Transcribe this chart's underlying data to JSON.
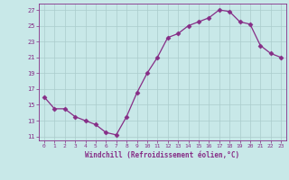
{
  "x": [
    0,
    1,
    2,
    3,
    4,
    5,
    6,
    7,
    8,
    9,
    10,
    11,
    12,
    13,
    14,
    15,
    16,
    17,
    18,
    19,
    20,
    21,
    22,
    23
  ],
  "y": [
    16,
    14.5,
    14.5,
    13.5,
    13,
    12.5,
    11.5,
    11.2,
    13.5,
    16.5,
    19,
    21,
    23.5,
    24,
    25,
    25.5,
    26,
    27,
    26.8,
    25.5,
    25.2,
    22.5,
    21.5,
    21
  ],
  "line_color": "#862d86",
  "marker": "D",
  "marker_size": 2.5,
  "bg_color": "#c8e8e8",
  "grid_color": "#aacccc",
  "xlabel": "Windchill (Refroidissement éolien,°C)",
  "xlabel_color": "#862d86",
  "tick_color": "#862d86",
  "yticks": [
    11,
    13,
    15,
    17,
    19,
    21,
    23,
    25,
    27
  ],
  "xticks": [
    0,
    1,
    2,
    3,
    4,
    5,
    6,
    7,
    8,
    9,
    10,
    11,
    12,
    13,
    14,
    15,
    16,
    17,
    18,
    19,
    20,
    21,
    22,
    23
  ],
  "ylim": [
    10.5,
    27.8
  ],
  "xlim": [
    -0.5,
    23.5
  ]
}
